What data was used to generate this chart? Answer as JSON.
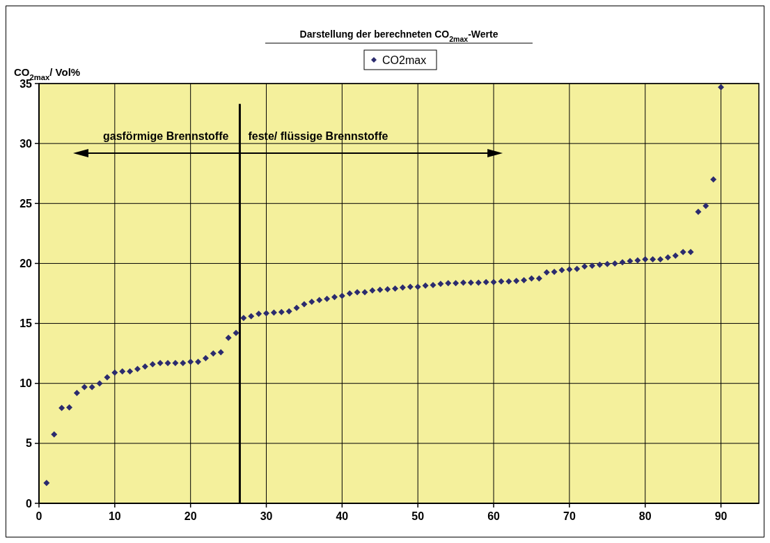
{
  "chart_data": {
    "type": "scatter",
    "title": "Darstellung der berechneten CO$_{2max}$-Werte",
    "ylabel": "CO$_{2max}$/ Vol%",
    "x": [
      1,
      2,
      3,
      4,
      5,
      6,
      7,
      8,
      9,
      10,
      11,
      12,
      13,
      14,
      15,
      16,
      17,
      18,
      19,
      20,
      21,
      22,
      23,
      24,
      25,
      26,
      27,
      28,
      29,
      30,
      31,
      32,
      33,
      34,
      35,
      36,
      37,
      38,
      39,
      40,
      41,
      42,
      43,
      44,
      45,
      46,
      47,
      48,
      49,
      50,
      51,
      52,
      53,
      54,
      55,
      56,
      57,
      58,
      59,
      60,
      61,
      62,
      63,
      64,
      65,
      66,
      67,
      68,
      69,
      70,
      71,
      72,
      73,
      74,
      75,
      76,
      77,
      78,
      79,
      80,
      81,
      82,
      83,
      84,
      85,
      86,
      87,
      88,
      89,
      90
    ],
    "series": [
      {
        "name": "CO2max",
        "color": "#2b2b6e",
        "values": [
          1.7,
          5.75,
          7.95,
          8.0,
          9.2,
          9.7,
          9.7,
          10.0,
          10.5,
          10.9,
          11.0,
          11.0,
          11.2,
          11.4,
          11.6,
          11.7,
          11.7,
          11.7,
          11.7,
          11.8,
          11.8,
          12.1,
          12.5,
          12.6,
          13.8,
          14.2,
          15.45,
          15.6,
          15.8,
          15.85,
          15.9,
          15.95,
          16.0,
          16.3,
          16.6,
          16.8,
          16.95,
          17.05,
          17.2,
          17.3,
          17.5,
          17.6,
          17.6,
          17.75,
          17.8,
          17.85,
          17.9,
          18.0,
          18.05,
          18.05,
          18.15,
          18.2,
          18.3,
          18.35,
          18.35,
          18.4,
          18.4,
          18.4,
          18.45,
          18.45,
          18.5,
          18.5,
          18.55,
          18.6,
          18.75,
          18.75,
          19.25,
          19.3,
          19.45,
          19.5,
          19.55,
          19.75,
          19.8,
          19.9,
          19.95,
          20.0,
          20.1,
          20.2,
          20.25,
          20.35,
          20.35,
          20.35,
          20.5,
          20.65,
          20.95,
          20.95,
          24.3,
          24.8,
          27.0,
          34.7
        ]
      }
    ],
    "xlim": [
      0,
      95
    ],
    "xticks": [
      0,
      10,
      20,
      30,
      40,
      50,
      60,
      70,
      80,
      90
    ],
    "ylim": [
      0,
      35
    ],
    "yticks": [
      0,
      5,
      10,
      15,
      20,
      25,
      30,
      35
    ],
    "grid": true,
    "legend": "top",
    "marker": "diamond",
    "ref_lines": [
      {
        "axis": "x",
        "value": 26.5,
        "color": "#000000"
      }
    ],
    "annotations": [
      "gasförmige Brennstoffe",
      "feste/ flüssige Brennstoffe"
    ]
  }
}
